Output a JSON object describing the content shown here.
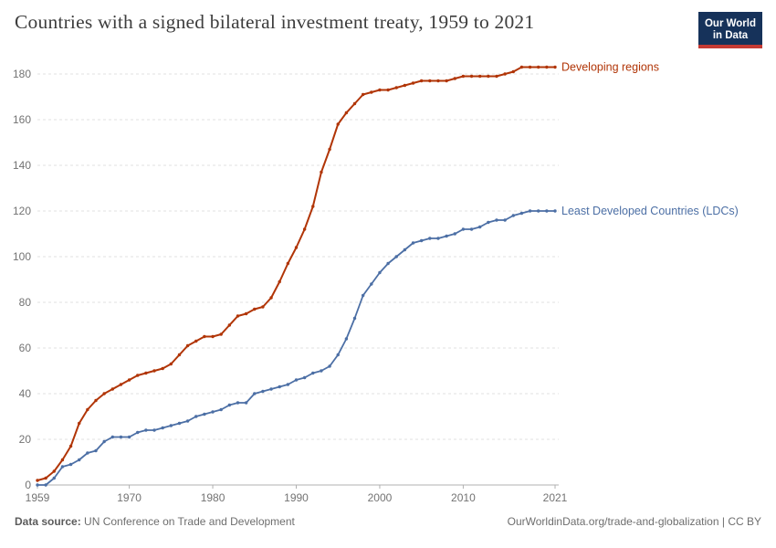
{
  "header": {
    "title": "Countries with a signed bilateral investment treaty, 1959 to 2021",
    "logo": {
      "line1": "Our World",
      "line2": "in Data",
      "bg_color": "#16325A",
      "bar_color": "#C53A33"
    }
  },
  "chart_data": {
    "type": "line",
    "title": "Countries with a signed bilateral investment treaty, 1959 to 2021",
    "xlabel": "",
    "ylabel": "",
    "ylim": [
      0,
      186
    ],
    "yticks": [
      0,
      20,
      40,
      60,
      80,
      100,
      120,
      140,
      160,
      180
    ],
    "xticks": [
      1959,
      1970,
      1980,
      1990,
      2000,
      2010,
      2021
    ],
    "grid": "dashed-horizontal",
    "legend": "end-of-line-labels",
    "x": [
      1959,
      1960,
      1961,
      1962,
      1963,
      1964,
      1965,
      1966,
      1967,
      1968,
      1969,
      1970,
      1971,
      1972,
      1973,
      1974,
      1975,
      1976,
      1977,
      1978,
      1979,
      1980,
      1981,
      1982,
      1983,
      1984,
      1985,
      1986,
      1987,
      1988,
      1989,
      1990,
      1991,
      1992,
      1993,
      1994,
      1995,
      1996,
      1997,
      1998,
      1999,
      2000,
      2001,
      2002,
      2003,
      2004,
      2005,
      2006,
      2007,
      2008,
      2009,
      2010,
      2011,
      2012,
      2013,
      2014,
      2015,
      2016,
      2017,
      2018,
      2019,
      2020,
      2021
    ],
    "series": [
      {
        "name": "Developing regions",
        "color": "#B13507",
        "values": [
          2,
          3,
          6,
          11,
          17,
          27,
          33,
          37,
          40,
          42,
          44,
          46,
          48,
          49,
          50,
          51,
          53,
          57,
          61,
          63,
          65,
          65,
          66,
          70,
          74,
          75,
          77,
          78,
          82,
          89,
          97,
          104,
          112,
          122,
          137,
          147,
          158,
          163,
          167,
          171,
          172,
          173,
          173,
          174,
          175,
          176,
          177,
          177,
          177,
          177,
          178,
          179,
          179,
          179,
          179,
          179,
          180,
          181,
          183,
          183,
          183,
          183,
          183
        ]
      },
      {
        "name": "Least Developed Countries (LDCs)",
        "color": "#4C6FA5",
        "values": [
          0,
          0,
          3,
          8,
          9,
          11,
          14,
          15,
          19,
          21,
          21,
          21,
          23,
          24,
          24,
          25,
          26,
          27,
          28,
          30,
          31,
          32,
          33,
          35,
          36,
          36,
          40,
          41,
          42,
          43,
          44,
          46,
          47,
          49,
          50,
          52,
          57,
          64,
          73,
          83,
          88,
          93,
          97,
          100,
          103,
          106,
          107,
          108,
          108,
          109,
          110,
          112,
          112,
          113,
          115,
          116,
          116,
          118,
          119,
          120,
          120,
          120,
          120
        ]
      }
    ]
  },
  "footer": {
    "source_label": "Data source:",
    "source_text": "UN Conference on Trade and Development",
    "link_text": "OurWorldinData.org/trade-and-globalization",
    "license_text": " | CC BY"
  }
}
